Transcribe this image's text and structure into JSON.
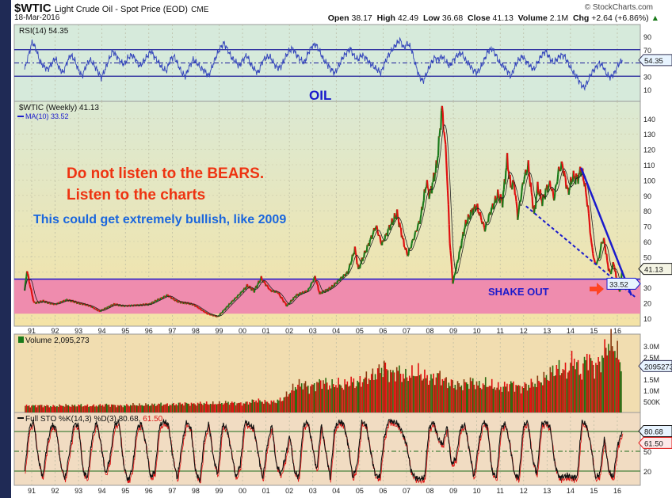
{
  "header": {
    "symbol": "$WTIC",
    "name": "Light Crude Oil - Spot Price (EOD)",
    "exchange": "CME",
    "date": "18-Mar-2016",
    "watermark": "© StockCharts.com",
    "open_label": "Open",
    "open": "38.17",
    "high_label": "High",
    "high": "42.49",
    "low_label": "Low",
    "low": "36.68",
    "close_label": "Close",
    "close": "41.13",
    "volume_label": "Volume",
    "volume": "2.1M",
    "chg_label": "Chg",
    "chg": "+2.64 (+6.86%)",
    "chg_arrow": "▲"
  },
  "colors": {
    "up": "#1a7a1a",
    "down": "#e01010",
    "trend": "#1a1acc",
    "annot_red": "#ee3311",
    "annot_blue": "#1a66dd",
    "band": "#ef8cae"
  },
  "chart_data": [
    {
      "type": "line",
      "panel": "rsi",
      "title": "RSI(14) 54.35",
      "last_value_label": "54.35",
      "yticks": [
        90,
        70,
        30,
        10
      ],
      "ylim": [
        0,
        100
      ],
      "levels": [
        70,
        50,
        30
      ],
      "x_range": [
        1990.7,
        2016.21
      ],
      "values": [
        40,
        62,
        82,
        70,
        52,
        45,
        40,
        48,
        58,
        42,
        35,
        50,
        62,
        55,
        40,
        30,
        45,
        55,
        48,
        38,
        28,
        40,
        55,
        68,
        60,
        52,
        48,
        58,
        62,
        55,
        45,
        52,
        60,
        68,
        58,
        50,
        42,
        38,
        55,
        60,
        48,
        35,
        30,
        45,
        55,
        50,
        42,
        38,
        30,
        45,
        60,
        72,
        80,
        70,
        58,
        52,
        45,
        55,
        62,
        48,
        40,
        35,
        52,
        58,
        60,
        50,
        42,
        45,
        58,
        68,
        72,
        62,
        55,
        50,
        65,
        75,
        78,
        68,
        55,
        48,
        40,
        35,
        45,
        58,
        65,
        72,
        60,
        55,
        62,
        58,
        50,
        45,
        40,
        35,
        50,
        62,
        70,
        78,
        85,
        72,
        80,
        70,
        48,
        30,
        22,
        35,
        48,
        58,
        55,
        60,
        52,
        45,
        55,
        62,
        65,
        55,
        48,
        40,
        35,
        42,
        55,
        68,
        72,
        62,
        50,
        45,
        38,
        30,
        45,
        55,
        60,
        52,
        45,
        40,
        52,
        62,
        68,
        58,
        50,
        56,
        62,
        60,
        48,
        38,
        30,
        20,
        12,
        22,
        35,
        42,
        50,
        45,
        32,
        28,
        35,
        48,
        54.35
      ]
    },
    {
      "type": "line",
      "panel": "price",
      "title": "$WTIC (Weekly) 41.13",
      "ma_label": "MA(10) 33.52",
      "last_value_label": "41.13",
      "ma_value_label": "33.52",
      "yticks": [
        140,
        130,
        120,
        110,
        100,
        90,
        80,
        70,
        60,
        50,
        40,
        30,
        20,
        10
      ],
      "ylim": [
        10,
        145
      ],
      "x_ticks": [
        "91",
        "92",
        "93",
        "94",
        "95",
        "96",
        "97",
        "98",
        "99",
        "00",
        "01",
        "02",
        "03",
        "04",
        "05",
        "06",
        "07",
        "08",
        "09",
        "10",
        "11",
        "12",
        "13",
        "14",
        "15",
        "16"
      ],
      "x_tick_years": [
        1991,
        1992,
        1993,
        1994,
        1995,
        1996,
        1997,
        1998,
        1999,
        2000,
        2001,
        2002,
        2003,
        2004,
        2005,
        2006,
        2007,
        2008,
        2009,
        2010,
        2011,
        2012,
        2013,
        2014,
        2015,
        2016
      ],
      "points": [
        [
          1990.7,
          28
        ],
        [
          1990.8,
          41
        ],
        [
          1990.95,
          30
        ],
        [
          1991.1,
          20
        ],
        [
          1991.5,
          21
        ],
        [
          1992.0,
          19
        ],
        [
          1992.5,
          22
        ],
        [
          1993.0,
          20
        ],
        [
          1993.5,
          18
        ],
        [
          1993.9,
          14.5
        ],
        [
          1994.5,
          19
        ],
        [
          1995.0,
          18
        ],
        [
          1995.5,
          18.5
        ],
        [
          1996.0,
          19
        ],
        [
          1996.8,
          25
        ],
        [
          1997.2,
          21
        ],
        [
          1997.9,
          19
        ],
        [
          1998.5,
          13
        ],
        [
          1998.95,
          11
        ],
        [
          1999.5,
          20
        ],
        [
          1999.9,
          26
        ],
        [
          2000.2,
          31
        ],
        [
          2000.5,
          28
        ],
        [
          2000.8,
          36
        ],
        [
          2001.2,
          28
        ],
        [
          2001.5,
          27
        ],
        [
          2001.9,
          18
        ],
        [
          2002.3,
          25
        ],
        [
          2002.8,
          28
        ],
        [
          2003.1,
          37
        ],
        [
          2003.3,
          26
        ],
        [
          2003.8,
          30
        ],
        [
          2004.2,
          36
        ],
        [
          2004.5,
          40
        ],
        [
          2004.8,
          55
        ],
        [
          2004.95,
          42
        ],
        [
          2005.3,
          55
        ],
        [
          2005.7,
          70
        ],
        [
          2005.95,
          58
        ],
        [
          2006.3,
          70
        ],
        [
          2006.6,
          78
        ],
        [
          2006.9,
          58
        ],
        [
          2007.05,
          51
        ],
        [
          2007.4,
          66
        ],
        [
          2007.6,
          75
        ],
        [
          2007.85,
          98
        ],
        [
          2008.0,
          90
        ],
        [
          2008.3,
          110
        ],
        [
          2008.52,
          147
        ],
        [
          2008.7,
          115
        ],
        [
          2008.85,
          60
        ],
        [
          2008.98,
          33
        ],
        [
          2009.2,
          48
        ],
        [
          2009.5,
          70
        ],
        [
          2009.8,
          80
        ],
        [
          2010.0,
          83
        ],
        [
          2010.35,
          68
        ],
        [
          2010.6,
          80
        ],
        [
          2010.9,
          90
        ],
        [
          2011.1,
          86
        ],
        [
          2011.3,
          113
        ],
        [
          2011.45,
          96
        ],
        [
          2011.6,
          98
        ],
        [
          2011.75,
          76
        ],
        [
          2012.0,
          100
        ],
        [
          2012.2,
          109
        ],
        [
          2012.45,
          78
        ],
        [
          2012.6,
          95
        ],
        [
          2012.8,
          86
        ],
        [
          2013.0,
          95
        ],
        [
          2013.15,
          97
        ],
        [
          2013.3,
          88
        ],
        [
          2013.5,
          106
        ],
        [
          2013.65,
          110
        ],
        [
          2013.9,
          92
        ],
        [
          2014.1,
          102
        ],
        [
          2014.3,
          101
        ],
        [
          2014.47,
          107
        ],
        [
          2014.6,
          98
        ],
        [
          2014.75,
          82
        ],
        [
          2014.9,
          58
        ],
        [
          2015.05,
          45
        ],
        [
          2015.2,
          48
        ],
        [
          2015.35,
          60
        ],
        [
          2015.45,
          60
        ],
        [
          2015.6,
          44
        ],
        [
          2015.7,
          39
        ],
        [
          2015.85,
          46
        ],
        [
          2015.95,
          37
        ],
        [
          2016.1,
          27
        ],
        [
          2016.21,
          41.13
        ]
      ],
      "support_level": 35.5,
      "band": [
        13,
        35.5
      ],
      "trendline_solid": [
        [
          2014.45,
          108
        ],
        [
          2016.6,
          25
        ]
      ],
      "trendline_dashed": [
        [
          2012.1,
          83
        ],
        [
          2016.75,
          24
        ]
      ]
    },
    {
      "type": "bar",
      "panel": "volume",
      "title": "Volume 2,095,273",
      "last_value_label": "2095273",
      "ytick_labels": [
        "3.0M",
        "2.5M",
        "1.5M",
        "1.0M",
        "500K"
      ],
      "ytick_values": [
        3.0,
        2.5,
        1.5,
        1.0,
        0.5
      ],
      "unit": "millions",
      "x_range": [
        1990.7,
        2016.21
      ],
      "values": [
        0.3,
        0.3,
        0.32,
        0.3,
        0.28,
        0.3,
        0.32,
        0.3,
        0.33,
        0.3,
        0.3,
        0.32,
        0.35,
        0.33,
        0.3,
        0.32,
        0.35,
        0.33,
        0.35,
        0.35,
        0.38,
        0.35,
        0.37,
        0.4,
        0.4,
        0.38,
        0.42,
        0.4,
        0.4,
        0.42,
        0.45,
        0.42,
        0.4,
        0.45,
        0.55,
        0.5,
        0.45,
        0.5,
        0.6,
        0.9,
        1.2,
        1.3,
        1.1,
        1.3,
        1.4,
        1.2,
        1.3,
        1.2,
        1.4,
        1.3,
        1.5,
        1.6,
        1.8,
        2.1,
        1.7,
        1.9,
        1.6,
        1.7,
        1.8,
        1.6,
        1.5,
        1.7,
        1.4,
        1.3,
        1.2,
        1.3,
        1.4,
        1.2,
        1.3,
        1.2,
        1.1,
        1.2,
        1.3,
        1.1,
        1.2,
        1.3,
        1.4,
        1.6,
        1.9,
        2.0,
        1.8,
        2.5,
        1.7,
        2.6,
        2.0,
        2.3,
        3.1,
        3.0,
        2.1
      ]
    },
    {
      "type": "line",
      "panel": "stochastic",
      "title": "Full STO %K(14,3) %D(3) 80.68,",
      "d_value": "61.50",
      "k_label": "80.68",
      "d_label": "61.50",
      "yticks": [
        50,
        20
      ],
      "levels": [
        80,
        50,
        20
      ],
      "ylim": [
        0,
        100
      ],
      "x_range": [
        1990.7,
        2016.21
      ],
      "values": [
        20,
        85,
        95,
        40,
        10,
        60,
        90,
        85,
        30,
        8,
        50,
        92,
        88,
        20,
        10,
        70,
        95,
        60,
        15,
        40,
        90,
        95,
        30,
        5,
        25,
        85,
        92,
        60,
        10,
        20,
        88,
        95,
        90,
        40,
        8,
        60,
        95,
        85,
        20,
        5,
        70,
        92,
        40,
        15,
        90,
        85,
        50,
        10,
        30,
        95,
        90,
        85,
        45,
        8,
        60,
        90,
        30,
        15,
        40,
        75,
        20,
        10,
        88,
        95,
        60,
        20,
        90,
        50,
        10,
        85,
        95,
        92,
        60,
        10,
        30,
        95,
        90,
        50,
        15,
        10,
        70,
        98,
        95,
        92,
        80,
        60,
        20,
        10,
        8,
        10,
        85,
        95,
        70,
        60,
        88,
        30,
        40,
        85,
        90,
        50,
        10,
        60,
        95,
        88,
        20,
        10,
        85,
        92,
        60,
        15,
        10,
        88,
        95,
        40,
        15,
        90,
        95,
        85,
        30,
        10,
        12,
        13,
        10,
        12,
        95,
        90,
        60,
        10,
        15,
        70,
        20,
        10,
        60,
        80.68
      ]
    }
  ],
  "annotations": {
    "oil": "OIL",
    "bears": "Do not listen to the BEARS.",
    "charts": "Listen to the charts",
    "bullish": "This could get extremely bullish, like 2009",
    "shakeout": "SHAKE OUT"
  }
}
